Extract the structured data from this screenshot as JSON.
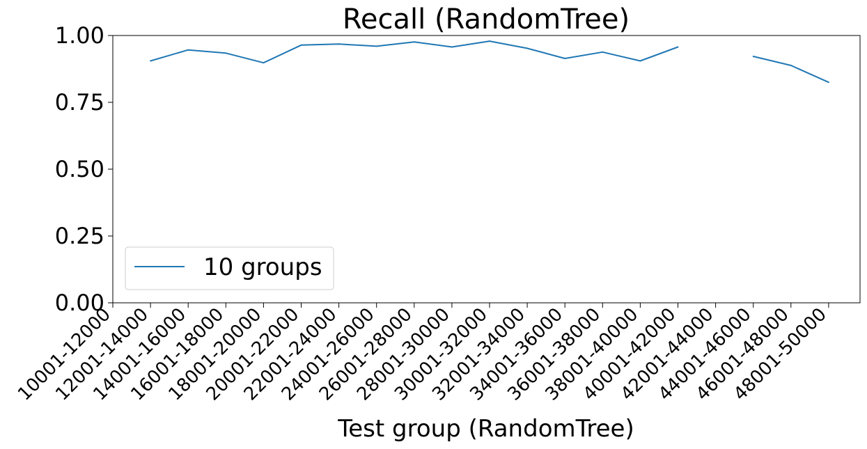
{
  "chart_data": {
    "type": "line",
    "title": "Recall (RandomTree)",
    "xlabel": "Test group (RandomTree)",
    "ylabel": "",
    "ylim": [
      0,
      1
    ],
    "yticks": [
      "0.00",
      "0.25",
      "0.50",
      "0.75",
      "1.00"
    ],
    "categories": [
      "10001-12000",
      "12001-14000",
      "14001-16000",
      "16001-18000",
      "18001-20000",
      "20001-22000",
      "22001-24000",
      "24001-26000",
      "26001-28000",
      "28001-30000",
      "30001-32000",
      "32001-34000",
      "34001-36000",
      "36001-38000",
      "38001-40000",
      "40001-42000",
      "42001-44000",
      "44001-46000",
      "46001-48000",
      "48001-50000"
    ],
    "series": [
      {
        "name": "10 groups",
        "color": "#1f77b4",
        "values": [
          null,
          0.905,
          0.946,
          0.934,
          0.898,
          0.964,
          0.968,
          0.96,
          0.976,
          0.957,
          0.979,
          0.952,
          0.914,
          0.938,
          0.905,
          0.957,
          null,
          0.922,
          0.888,
          0.825
        ]
      }
    ],
    "legend": {
      "placement": "lower-left",
      "entries": [
        "10 groups"
      ]
    },
    "grid": false
  }
}
